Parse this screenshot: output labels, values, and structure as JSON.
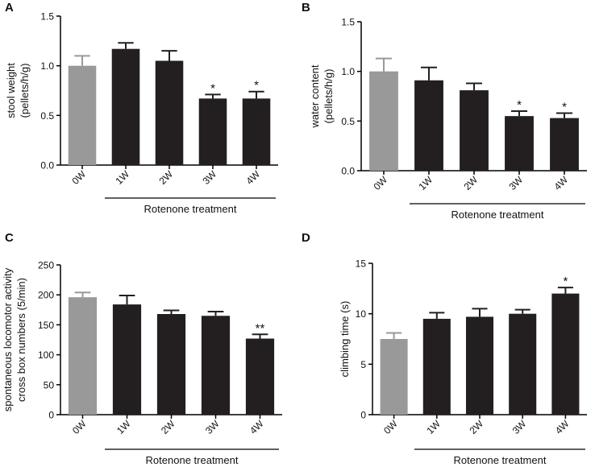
{
  "colors": {
    "control": "#999999",
    "treatment": "#231f20",
    "axis": "#000000"
  },
  "chart_data": [
    {
      "panel": "A",
      "type": "bar",
      "categories": [
        "0W",
        "1W",
        "2W",
        "3W",
        "4W"
      ],
      "values": [
        1.0,
        1.17,
        1.05,
        0.67,
        0.67
      ],
      "errors": [
        0.1,
        0.06,
        0.1,
        0.04,
        0.07
      ],
      "annotations": [
        "",
        "",
        "",
        "*",
        "*"
      ],
      "ylabel": [
        "stool weight",
        "(pellets/h/g)"
      ],
      "xlabel": "Rotenone treatment",
      "ylim": [
        0,
        1.5
      ],
      "yticks": [
        0,
        0.5,
        1.0,
        1.5
      ],
      "ytick_labels": [
        "0.0",
        "0.5",
        "1.0",
        "1.5"
      ]
    },
    {
      "panel": "B",
      "type": "bar",
      "categories": [
        "0W",
        "1W",
        "2W",
        "3W",
        "4W"
      ],
      "values": [
        1.0,
        0.91,
        0.81,
        0.55,
        0.53
      ],
      "errors": [
        0.13,
        0.13,
        0.07,
        0.05,
        0.05
      ],
      "annotations": [
        "",
        "",
        "",
        "*",
        "*"
      ],
      "ylabel": [
        "water content",
        "(pellets/h/g)"
      ],
      "xlabel": "Rotenone treatment",
      "ylim": [
        0,
        1.5
      ],
      "yticks": [
        0,
        0.5,
        1.0,
        1.5
      ],
      "ytick_labels": [
        "0.0",
        "0.5",
        "1.0",
        "1.5"
      ]
    },
    {
      "panel": "C",
      "type": "bar",
      "categories": [
        "0W",
        "1W",
        "2W",
        "3W",
        "4W"
      ],
      "values": [
        196,
        184,
        168,
        165,
        127
      ],
      "errors": [
        8,
        15,
        6,
        7,
        7
      ],
      "annotations": [
        "",
        "",
        "",
        "",
        "**"
      ],
      "ylabel": [
        "spontaneous locomotor activity",
        "cross box numbers (5/min)"
      ],
      "xlabel": "Rotenone treatment",
      "ylim": [
        0,
        250
      ],
      "yticks": [
        0,
        50,
        100,
        150,
        200,
        250
      ],
      "ytick_labels": [
        "0",
        "50",
        "100",
        "150",
        "200",
        "250"
      ]
    },
    {
      "panel": "D",
      "type": "bar",
      "categories": [
        "0W",
        "1W",
        "2W",
        "3W",
        "4W"
      ],
      "values": [
        7.5,
        9.5,
        9.7,
        10.0,
        12.0
      ],
      "errors": [
        0.6,
        0.6,
        0.8,
        0.4,
        0.6
      ],
      "annotations": [
        "",
        "",
        "",
        "",
        "*"
      ],
      "ylabel": [
        "climbing time (s)"
      ],
      "xlabel": "Rotenone treatment",
      "ylim": [
        0,
        15
      ],
      "yticks": [
        0,
        5,
        10,
        15
      ],
      "ytick_labels": [
        "0",
        "5",
        "10",
        "15"
      ]
    }
  ]
}
